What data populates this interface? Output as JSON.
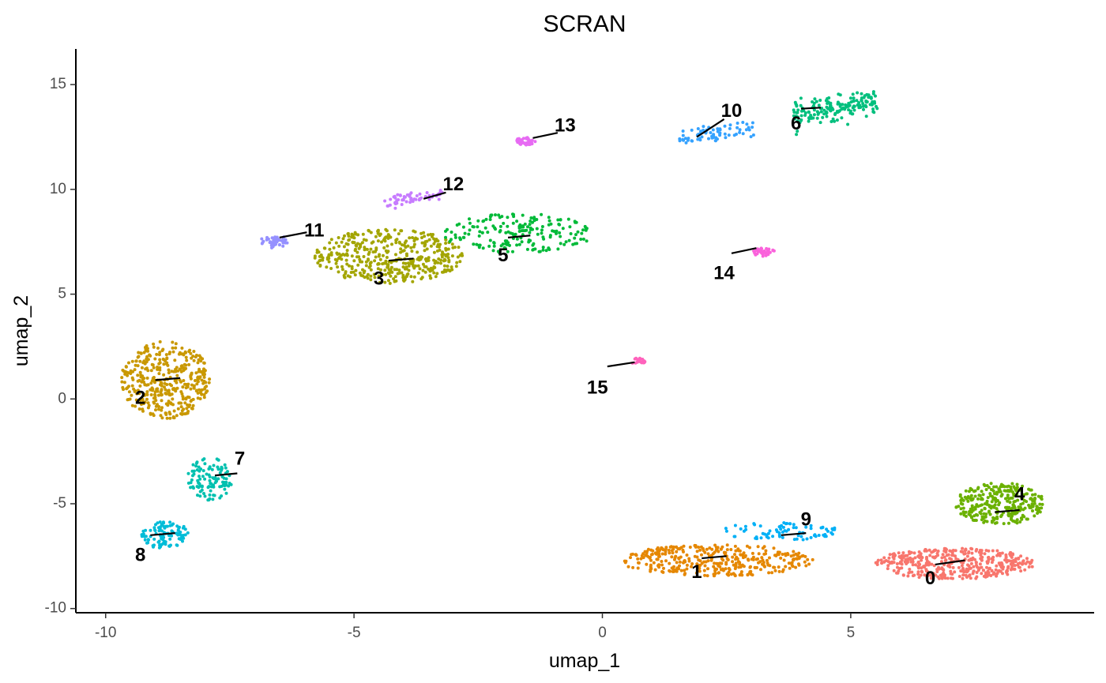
{
  "chart_data": {
    "type": "scatter",
    "title": "SCRAN",
    "xlabel": "umap_1",
    "ylabel": "umap_2",
    "xlim": [
      -10.6,
      9.9
    ],
    "ylim": [
      -10.2,
      16.7
    ],
    "x_ticks": [
      -10,
      -5,
      0,
      5
    ],
    "y_ticks": [
      -10,
      -5,
      0,
      5,
      10,
      15
    ],
    "x_tick_labels": [
      "-10",
      "-5",
      "0",
      "5"
    ],
    "y_tick_labels": [
      "-10",
      "-5",
      "0",
      "5",
      "10",
      "15"
    ],
    "grid": false,
    "legend": "none",
    "point_size": 2,
    "clusters": [
      {
        "label": "0",
        "color": "#F8766D",
        "center": [
          7.1,
          -7.85
        ],
        "shape": "ellipse",
        "spread": [
          1.6,
          0.75
        ],
        "n": 420,
        "label_pos": [
          6.6,
          -8.6
        ],
        "seg": [
          6.7,
          -7.9,
          7.3,
          -7.7
        ]
      },
      {
        "label": "1",
        "color": "#E58700",
        "center": [
          2.3,
          -7.7
        ],
        "shape": "ellipse",
        "spread": [
          1.95,
          0.75
        ],
        "n": 360,
        "label_pos": [
          1.9,
          -8.3
        ],
        "seg": [
          2.0,
          -7.6,
          2.5,
          -7.5
        ]
      },
      {
        "label": "2",
        "color": "#C99800",
        "center": [
          -8.8,
          0.9
        ],
        "shape": "ellipse",
        "spread": [
          0.9,
          1.85
        ],
        "n": 400,
        "label_pos": [
          -9.3,
          0.0
        ],
        "seg": [
          -9.0,
          0.9,
          -8.5,
          1.0
        ]
      },
      {
        "label": "3",
        "color": "#A3A500",
        "center": [
          -4.3,
          6.8
        ],
        "shape": "ellipse",
        "spread": [
          1.5,
          1.3
        ],
        "n": 430,
        "label_pos": [
          -4.5,
          5.7
        ],
        "seg": [
          -4.3,
          6.6,
          -3.8,
          6.7
        ]
      },
      {
        "label": "4",
        "color": "#6BB100",
        "center": [
          8.0,
          -5.0
        ],
        "shape": "ellipse",
        "spread": [
          0.9,
          1.0
        ],
        "n": 300,
        "label_pos": [
          8.4,
          -4.6
        ],
        "seg": [
          7.9,
          -5.4,
          8.4,
          -5.3
        ]
      },
      {
        "label": "5",
        "color": "#00BA38",
        "center": [
          -1.7,
          7.9
        ],
        "shape": "ellipse",
        "spread": [
          1.5,
          0.95
        ],
        "n": 190,
        "label_pos": [
          -2.0,
          6.8
        ],
        "seg": [
          -1.9,
          7.7,
          -1.45,
          7.8
        ]
      },
      {
        "label": "6",
        "color": "#00BF7D",
        "center": [
          4.7,
          13.9
        ],
        "shape": "line",
        "spread": [
          0.85,
          0.3
        ],
        "n": 170,
        "label_pos": [
          3.9,
          13.1
        ],
        "seg": [
          4.0,
          13.85,
          4.4,
          13.9
        ]
      },
      {
        "label": "7",
        "color": "#00C0AF",
        "center": [
          -7.9,
          -3.8
        ],
        "shape": "ellipse",
        "spread": [
          0.45,
          1.05
        ],
        "n": 110,
        "label_pos": [
          -7.3,
          -2.9
        ],
        "seg": [
          -7.8,
          -3.65,
          -7.35,
          -3.55
        ]
      },
      {
        "label": "8",
        "color": "#00BCD8",
        "center": [
          -8.8,
          -6.5
        ],
        "shape": "ellipse",
        "spread": [
          0.5,
          0.65
        ],
        "n": 100,
        "label_pos": [
          -9.3,
          -7.5
        ],
        "seg": [
          -9.1,
          -6.5,
          -8.6,
          -6.4
        ]
      },
      {
        "label": "9",
        "color": "#00B0F6",
        "center": [
          3.6,
          -6.3
        ],
        "shape": "ellipse",
        "spread": [
          1.2,
          0.45
        ],
        "n": 80,
        "label_pos": [
          4.1,
          -5.8
        ],
        "seg": [
          3.6,
          -6.5,
          4.1,
          -6.4
        ]
      },
      {
        "label": "10",
        "color": "#35A2FF",
        "center": [
          2.3,
          12.6
        ],
        "shape": "line",
        "spread": [
          0.75,
          0.22
        ],
        "n": 70,
        "label_pos": [
          2.6,
          13.7
        ],
        "seg": [
          1.9,
          12.5,
          2.45,
          13.35
        ]
      },
      {
        "label": "11",
        "color": "#9590FF",
        "center": [
          -6.6,
          7.5
        ],
        "shape": "ellipse",
        "spread": [
          0.3,
          0.3
        ],
        "n": 45,
        "label_pos": [
          -5.8,
          8.0
        ],
        "seg": [
          -6.5,
          7.7,
          -5.95,
          7.95
        ]
      },
      {
        "label": "12",
        "color": "#C77CFF",
        "center": [
          -3.8,
          9.6
        ],
        "shape": "line",
        "spread": [
          0.6,
          0.14
        ],
        "n": 60,
        "label_pos": [
          -3.0,
          10.2
        ],
        "seg": [
          -3.6,
          9.55,
          -3.15,
          9.85
        ]
      },
      {
        "label": "13",
        "color": "#E76BF3",
        "center": [
          -1.55,
          12.3
        ],
        "shape": "ellipse",
        "spread": [
          0.2,
          0.18
        ],
        "n": 45,
        "label_pos": [
          -0.75,
          13.0
        ],
        "seg": [
          -1.4,
          12.45,
          -0.9,
          12.7
        ]
      },
      {
        "label": "14",
        "color": "#FA62DB",
        "center": [
          3.25,
          7.0
        ],
        "shape": "ellipse",
        "spread": [
          0.22,
          0.2
        ],
        "n": 35,
        "label_pos": [
          2.45,
          5.95
        ],
        "seg": [
          2.6,
          6.95,
          3.1,
          7.2
        ]
      },
      {
        "label": "15",
        "color": "#FF62BC",
        "center": [
          0.7,
          1.8
        ],
        "shape": "ellipse",
        "spread": [
          0.18,
          0.15
        ],
        "n": 20,
        "label_pos": [
          -0.1,
          0.5
        ],
        "seg": [
          0.1,
          1.55,
          0.65,
          1.75
        ]
      }
    ]
  }
}
